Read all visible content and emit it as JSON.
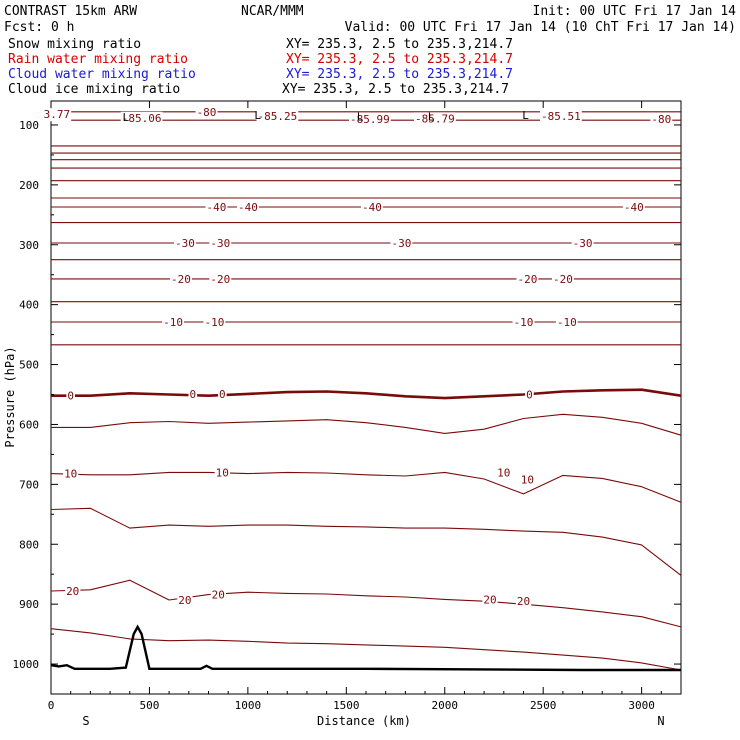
{
  "header": {
    "line1_left": "CONTRAST 15km ARW",
    "line1_center": "NCAR/MMM",
    "line1_right": "Init: 00 UTC Fri 17 Jan 14",
    "line2_left": "Fcst:     0 h",
    "line2_right": "Valid: 00 UTC Fri 17 Jan 14 (10 ChT Fri 17 Jan 14)"
  },
  "fields": [
    {
      "name": "Snow mixing ratio",
      "xy": "XY= 235.3,  2.5 to 235.3,214.7",
      "color": "#000000"
    },
    {
      "name": "Rain water mixing ratio",
      "xy": "XY= 235.3,  2.5 to 235.3,214.7",
      "color": "#d40000"
    },
    {
      "name": "Cloud water mixing ratio",
      "xy": "XY= 235.3,  2.5 to 235.3,214.7",
      "color": "#1a1ad4"
    },
    {
      "name": "Cloud ice mixing ratio",
      "xy": "XY= 235.3,  2.5 to 235.3,214.7",
      "color": "#000000"
    }
  ],
  "colors": {
    "contour": "#7a0b0b",
    "terrain": "#000000",
    "frame": "#000000"
  },
  "chart_data": {
    "type": "line",
    "xlabel": "Distance (km)",
    "ylabel": "Pressure (hPa)",
    "xlim": [
      0,
      3200
    ],
    "ylim": [
      1050,
      60
    ],
    "x_ticks": [
      0,
      500,
      1000,
      1500,
      2000,
      2500,
      3000
    ],
    "y_ticks": [
      100,
      200,
      300,
      400,
      500,
      600,
      700,
      800,
      900,
      1000
    ],
    "x_end_labels": {
      "left": "S",
      "right": "N"
    },
    "grid": false,
    "contour_field": "temperature",
    "contour_interval": 5,
    "highlighted_level": 0,
    "x_nodes": [
      0,
      200,
      400,
      600,
      800,
      1000,
      1200,
      1400,
      1600,
      1800,
      2000,
      2200,
      2400,
      2600,
      2800,
      3000,
      3200
    ],
    "contours": [
      {
        "level": -80,
        "p": [
          78,
          78,
          78,
          78,
          78,
          78,
          78,
          78,
          78,
          78,
          78,
          78,
          78,
          78,
          78,
          78,
          78
        ]
      },
      {
        "level": -75,
        "p": [
          92,
          92,
          92,
          92,
          92,
          92,
          92,
          92,
          92,
          92,
          92,
          92,
          92,
          92,
          92,
          92,
          92
        ]
      },
      {
        "level": -70,
        "p": [
          135,
          135,
          135,
          135,
          135,
          135,
          135,
          135,
          135,
          135,
          135,
          135,
          135,
          135,
          135,
          135,
          135
        ]
      },
      {
        "level": -65,
        "p": [
          147,
          147,
          147,
          147,
          147,
          147,
          147,
          147,
          147,
          147,
          147,
          147,
          147,
          147,
          147,
          147,
          147
        ]
      },
      {
        "level": -60,
        "p": [
          158,
          158,
          158,
          158,
          158,
          158,
          158,
          158,
          158,
          158,
          158,
          158,
          158,
          158,
          158,
          158,
          158
        ]
      },
      {
        "level": -55,
        "p": [
          172,
          172,
          172,
          172,
          172,
          172,
          172,
          172,
          172,
          172,
          172,
          172,
          172,
          172,
          172,
          172,
          172
        ]
      },
      {
        "level": -50,
        "p": [
          193,
          193,
          193,
          193,
          193,
          193,
          193,
          193,
          193,
          193,
          193,
          193,
          193,
          193,
          193,
          193,
          193
        ]
      },
      {
        "level": -45,
        "p": [
          222,
          222,
          222,
          222,
          222,
          222,
          222,
          222,
          222,
          222,
          222,
          222,
          222,
          222,
          222,
          222,
          222
        ]
      },
      {
        "level": -40,
        "p": [
          237,
          237,
          237,
          237,
          237,
          237,
          237,
          237,
          237,
          237,
          237,
          237,
          237,
          237,
          237,
          237,
          237
        ]
      },
      {
        "level": -35,
        "p": [
          263,
          263,
          263,
          263,
          263,
          263,
          263,
          263,
          263,
          263,
          263,
          263,
          263,
          263,
          263,
          263,
          263
        ]
      },
      {
        "level": -30,
        "p": [
          297,
          297,
          297,
          297,
          297,
          297,
          297,
          297,
          297,
          297,
          297,
          297,
          297,
          297,
          297,
          297,
          297
        ]
      },
      {
        "level": -25,
        "p": [
          325,
          325,
          325,
          325,
          325,
          325,
          325,
          325,
          325,
          325,
          325,
          325,
          325,
          325,
          325,
          325,
          325
        ]
      },
      {
        "level": -20,
        "p": [
          357,
          357,
          357,
          357,
          357,
          357,
          357,
          357,
          357,
          357,
          357,
          357,
          357,
          357,
          357,
          357,
          357
        ]
      },
      {
        "level": -15,
        "p": [
          395,
          395,
          395,
          395,
          395,
          395,
          395,
          395,
          395,
          395,
          395,
          395,
          395,
          395,
          395,
          395,
          395
        ]
      },
      {
        "level": -10,
        "p": [
          429,
          429,
          429,
          429,
          429,
          429,
          429,
          429,
          429,
          429,
          429,
          429,
          429,
          429,
          429,
          429,
          429
        ]
      },
      {
        "level": -5,
        "p": [
          467,
          467,
          467,
          467,
          467,
          467,
          467,
          467,
          467,
          467,
          467,
          467,
          467,
          467,
          467,
          467,
          467
        ]
      },
      {
        "level": 0,
        "p": [
          552,
          552,
          548,
          550,
          552,
          549,
          546,
          545,
          548,
          553,
          556,
          553,
          550,
          545,
          543,
          542,
          552
        ]
      },
      {
        "level": 5,
        "p": [
          605,
          605,
          597,
          595,
          598,
          596,
          594,
          592,
          597,
          605,
          615,
          608,
          590,
          583,
          588,
          598,
          618
        ]
      },
      {
        "level": 10,
        "p": [
          682,
          684,
          684,
          680,
          680,
          682,
          680,
          681,
          684,
          686,
          680,
          691,
          716,
          685,
          690,
          704,
          730
        ]
      },
      {
        "level": 15,
        "p": [
          742,
          740,
          773,
          768,
          770,
          768,
          768,
          770,
          771,
          773,
          773,
          775,
          778,
          780,
          788,
          801,
          852
        ]
      },
      {
        "level": 20,
        "p": [
          878,
          876,
          860,
          893,
          884,
          880,
          882,
          883,
          886,
          888,
          892,
          895,
          900,
          906,
          913,
          921,
          938
        ]
      },
      {
        "level": 25,
        "p": [
          941,
          948,
          958,
          961,
          960,
          962,
          965,
          966,
          968,
          970,
          972,
          976,
          980,
          985,
          990,
          998,
          1010
        ]
      }
    ],
    "terrain_surface_hPa": {
      "x": [
        0,
        40,
        80,
        120,
        300,
        380,
        420,
        440,
        460,
        500,
        560,
        760,
        790,
        820,
        1000,
        1600,
        2200,
        2700,
        3200
      ],
      "p": [
        1002,
        1004,
        1002,
        1008,
        1008,
        1006,
        950,
        938,
        950,
        1008,
        1008,
        1008,
        1003,
        1008,
        1008,
        1008,
        1009,
        1010,
        1010
      ]
    },
    "contour_labels": [
      {
        "text": "-80",
        "x": 790,
        "p": 78
      },
      {
        "text": "-85.06",
        "x": 460,
        "p": 88
      },
      {
        "text": "-85.25",
        "x": 1150,
        "p": 85
      },
      {
        "text": "-85.99",
        "x": 1620,
        "p": 90
      },
      {
        "text": "-85.79",
        "x": 1950,
        "p": 89
      },
      {
        "text": "-85.51",
        "x": 2590,
        "p": 85
      },
      {
        "text": "-80",
        "x": 3100,
        "p": 90
      },
      {
        "text": "3.77",
        "x": 30,
        "p": 82
      },
      {
        "text": "-40",
        "x": 840,
        "p": 237
      },
      {
        "text": "-40",
        "x": 1000,
        "p": 237
      },
      {
        "text": "-40",
        "x": 1630,
        "p": 237
      },
      {
        "text": "-40",
        "x": 2960,
        "p": 237
      },
      {
        "text": "-30",
        "x": 680,
        "p": 297
      },
      {
        "text": "-30",
        "x": 860,
        "p": 297
      },
      {
        "text": "-30",
        "x": 1780,
        "p": 297
      },
      {
        "text": "-30",
        "x": 2700,
        "p": 297
      },
      {
        "text": "-20",
        "x": 660,
        "p": 357
      },
      {
        "text": "-20",
        "x": 860,
        "p": 357
      },
      {
        "text": "-20",
        "x": 2420,
        "p": 357
      },
      {
        "text": "-20",
        "x": 2600,
        "p": 357
      },
      {
        "text": "-10",
        "x": 620,
        "p": 429
      },
      {
        "text": "-10",
        "x": 830,
        "p": 429
      },
      {
        "text": "-10",
        "x": 2400,
        "p": 429
      },
      {
        "text": "-10",
        "x": 2620,
        "p": 429
      },
      {
        "text": "0",
        "x": 100,
        "p": 552
      },
      {
        "text": "0",
        "x": 720,
        "p": 549
      },
      {
        "text": "0",
        "x": 870,
        "p": 549
      },
      {
        "text": "0",
        "x": 2430,
        "p": 550
      },
      {
        "text": "10",
        "x": 100,
        "p": 682
      },
      {
        "text": "10",
        "x": 870,
        "p": 680
      },
      {
        "text": "10",
        "x": 2300,
        "p": 680
      },
      {
        "text": "10",
        "x": 2420,
        "p": 692
      },
      {
        "text": "20",
        "x": 110,
        "p": 878
      },
      {
        "text": "20",
        "x": 680,
        "p": 893
      },
      {
        "text": "20",
        "x": 850,
        "p": 884
      },
      {
        "text": "20",
        "x": 2230,
        "p": 892
      },
      {
        "text": "20",
        "x": 2400,
        "p": 895
      }
    ],
    "low_markers": [
      {
        "text": "L",
        "x": 380,
        "p": 87
      },
      {
        "text": "L",
        "x": 1050,
        "p": 83
      },
      {
        "text": "L",
        "x": 1570,
        "p": 86
      },
      {
        "text": "L",
        "x": 1930,
        "p": 86
      },
      {
        "text": "L",
        "x": 2410,
        "p": 83
      }
    ]
  }
}
